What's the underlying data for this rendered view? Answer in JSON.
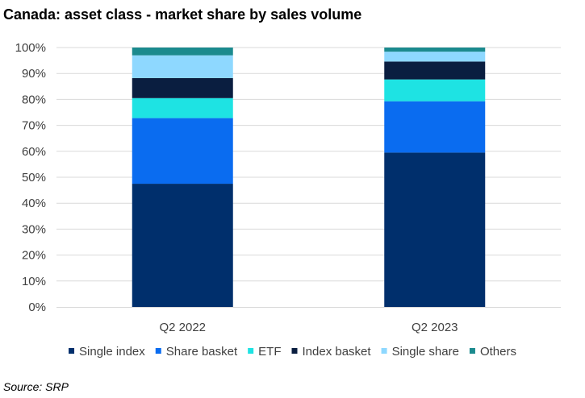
{
  "chart_data": {
    "type": "bar",
    "stacked": true,
    "title": "Canada: asset class - market share by sales volume",
    "source": "Source: SRP",
    "xlabel": "",
    "ylabel": "",
    "ylim": [
      0,
      100
    ],
    "y_tick_labels": [
      "0%",
      "10%",
      "20%",
      "30%",
      "40%",
      "50%",
      "60%",
      "70%",
      "80%",
      "90%",
      "100%"
    ],
    "categories": [
      "Q2 2022",
      "Q2 2023"
    ],
    "series": [
      {
        "name": "Single index",
        "color": "#002f6c",
        "values": [
          47.5,
          59.5
        ]
      },
      {
        "name": "Share basket",
        "color": "#0a6cf0",
        "values": [
          25.3,
          19.8
        ]
      },
      {
        "name": "ETF",
        "color": "#1ee3e3",
        "values": [
          7.7,
          8.4
        ]
      },
      {
        "name": "Index basket",
        "color": "#0a1e40",
        "values": [
          7.7,
          6.9
        ]
      },
      {
        "name": "Single share",
        "color": "#8ed8ff",
        "values": [
          8.8,
          3.8
        ]
      },
      {
        "name": "Others",
        "color": "#1b8a8e",
        "values": [
          3.0,
          1.6
        ]
      }
    ],
    "grid": true,
    "legend_position": "bottom"
  }
}
